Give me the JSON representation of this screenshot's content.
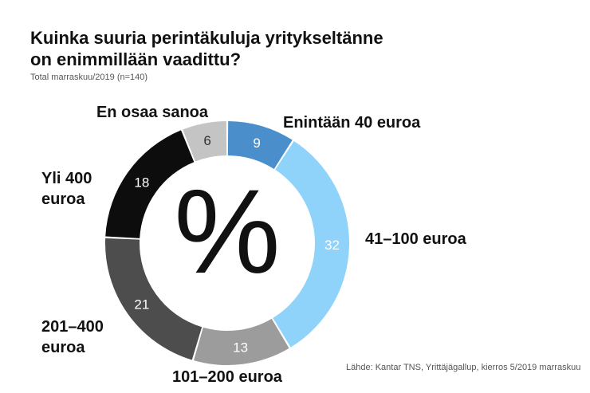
{
  "title_line1": "Kuinka suuria perintäkuluja yritykseltänne",
  "title_line2": "on enimmillään vaadittu?",
  "subtitle": "Total marraskuu/2019 (n=140)",
  "source": "Lähde: Kantar TNS, Yrittäjägallup, kierros 5/2019 marraskuu",
  "center_symbol": "%",
  "chart_data": {
    "type": "pie",
    "donut": true,
    "title": "Kuinka suuria perintäkuluja yritykseltänne on enimmillään vaadittu?",
    "unit": "%",
    "slices": [
      {
        "label": "Enintään 40 euroa",
        "label_lines": [
          "Enintään 40 euroa"
        ],
        "value": 9,
        "color": "#4a8fcb",
        "text_color": "#ffffff",
        "anchor": "start"
      },
      {
        "label": "41–100 euroa",
        "label_lines": [
          "41–100 euroa"
        ],
        "value": 32,
        "color": "#8fd3fa",
        "text_color": "#ffffff",
        "anchor": "start"
      },
      {
        "label": "101–200 euroa",
        "label_lines": [
          "101–200 euroa"
        ],
        "value": 13,
        "color": "#9c9c9c",
        "text_color": "#ffffff",
        "anchor": "middle"
      },
      {
        "label": "201–400 euroa",
        "label_lines": [
          "201–400",
          "euroa"
        ],
        "value": 21,
        "color": "#4d4d4d",
        "text_color": "#ffffff",
        "anchor": "start"
      },
      {
        "label": "Yli 400 euroa",
        "label_lines": [
          "Yli 400",
          "euroa"
        ],
        "value": 18,
        "color": "#0d0d0d",
        "text_color": "#ffffff",
        "anchor": "start"
      },
      {
        "label": "En osaa sanoa",
        "label_lines": [
          "En osaa sanoa"
        ],
        "value": 6,
        "color": "#c4c4c4",
        "text_color": "#333333",
        "anchor": "end"
      }
    ]
  }
}
